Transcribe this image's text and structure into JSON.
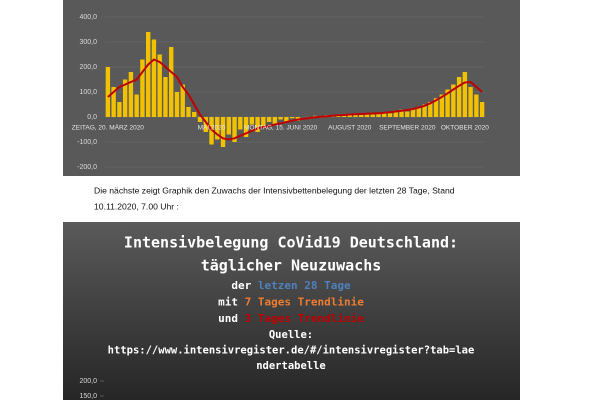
{
  "chart_data": [
    {
      "type": "bar",
      "categories": [
        "ZEITAG, 20. MÄRZ 2020",
        null,
        null,
        null,
        null,
        null,
        null,
        null,
        null,
        null,
        null,
        null,
        null,
        null,
        null,
        null,
        null,
        null,
        "MAI 2020",
        null,
        null,
        null,
        null,
        null,
        null,
        null,
        null,
        null,
        null,
        null,
        "MONTAG, 15. JUNI 2020",
        null,
        null,
        null,
        null,
        null,
        null,
        null,
        null,
        null,
        null,
        null,
        "AUGUST 2020",
        null,
        null,
        null,
        null,
        null,
        null,
        null,
        null,
        null,
        "SEPTEMBER 2020",
        null,
        null,
        null,
        null,
        null,
        null,
        null,
        null,
        null,
        "OKTOBER 2020",
        null,
        null,
        null
      ],
      "series": [
        {
          "color": "#f2c200",
          "values": [
            200,
            120,
            60,
            150,
            180,
            90,
            230,
            340,
            310,
            250,
            160,
            280,
            100,
            130,
            40,
            20,
            -20,
            -60,
            -110,
            -90,
            -120,
            -70,
            -100,
            -50,
            -80,
            -30,
            -60,
            -40,
            -20,
            -30,
            -10,
            -20,
            -5,
            -15,
            0,
            -8,
            5,
            -3,
            8,
            2,
            10,
            5,
            12,
            8,
            15,
            10,
            18,
            12,
            20,
            15,
            25,
            30,
            22,
            35,
            40,
            50,
            60,
            75,
            90,
            110,
            130,
            160,
            180,
            120,
            90,
            60
          ]
        },
        {
          "color": "#c00000",
          "type": "line",
          "values": [
            80,
            100,
            120,
            130,
            140,
            150,
            180,
            210,
            230,
            220,
            200,
            180,
            160,
            120,
            90,
            50,
            10,
            -20,
            -50,
            -70,
            -85,
            -90,
            -85,
            -75,
            -65,
            -55,
            -45,
            -40,
            -35,
            -30,
            -25,
            -20,
            -15,
            -10,
            -7,
            -4,
            -1,
            1,
            3,
            5,
            7,
            8,
            10,
            11,
            12,
            13,
            14,
            15,
            17,
            19,
            22,
            25,
            28,
            32,
            38,
            45,
            55,
            67,
            80,
            95,
            110,
            125,
            138,
            140,
            120,
            100
          ]
        }
      ],
      "ylim": [
        -200,
        400
      ],
      "yticks": [
        {
          "value": -200,
          "label": "-200,0"
        },
        {
          "value": -100,
          "label": "-100,0"
        },
        {
          "value": 0,
          "label": "0,0"
        },
        {
          "value": 100,
          "label": "100,0"
        },
        {
          "value": 200,
          "label": "200,0"
        },
        {
          "value": 300,
          "label": "300,0"
        },
        {
          "value": 400,
          "label": "400,0"
        }
      ],
      "grid": true
    },
    {
      "type": "bar",
      "title": [
        "Intensivbelegung CoVid19 Deutschland:",
        "täglicher Neuzuwachs"
      ],
      "subtitle": [
        [
          {
            "text": "der ",
            "color": "#ffffff"
          },
          {
            "text": "letzen 28 Tage",
            "color": "#4f81bd"
          }
        ],
        [
          {
            "text": "mit ",
            "color": "#ffffff"
          },
          {
            "text": "7 Tages Trendlinie",
            "color": "#ed7d31"
          }
        ],
        [
          {
            "text": "und ",
            "color": "#ffffff"
          },
          {
            "text": "3 Tages Trendlinie",
            "color": "#c00000"
          }
        ]
      ],
      "source": [
        "Quelle:",
        "https://www.intensivregister.de/#/intensivregister?tab=lae",
        "ndertabelle"
      ],
      "ylim": [
        0,
        200
      ],
      "yticks": [
        {
          "value": 150,
          "label": "150,0"
        },
        {
          "value": 200,
          "label": "200,0"
        }
      ]
    }
  ],
  "document": {
    "paragraph": [
      "Die nächste zeigt  Graphik den Zuwachs der Intensivbettenbelegung der letzten 28 Tage, Stand",
      "10.11.2020, 7.00 Uhr :"
    ]
  }
}
